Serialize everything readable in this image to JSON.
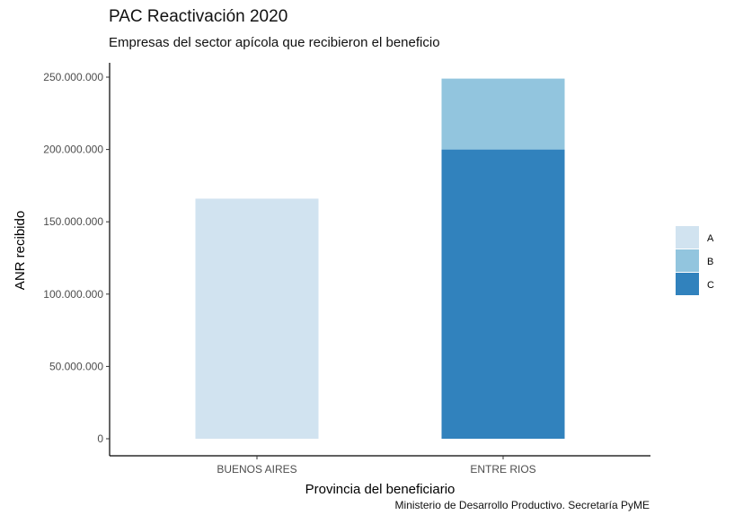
{
  "chart_data": {
    "type": "bar",
    "stacked": true,
    "title": "PAC Reactivación 2020",
    "subtitle": "Empresas del sector apícola que recibieron el beneficio",
    "xlabel": "Provincia del beneficiario",
    "ylabel": "ANR recibido",
    "caption": "Ministerio de Desarrollo Productivo. Secretaría PyME",
    "categories": [
      "BUENOS AIRES",
      "ENTRE RIOS"
    ],
    "series": [
      {
        "name": "A",
        "color": "#d1e3f0",
        "values": [
          166000000,
          0
        ]
      },
      {
        "name": "B",
        "color": "#92c5de",
        "values": [
          0,
          49000000
        ]
      },
      {
        "name": "C",
        "color": "#3182bd",
        "values": [
          0,
          200000000
        ]
      }
    ],
    "ylim": [
      0,
      262000000
    ],
    "yticks": [
      0,
      50000000,
      100000000,
      150000000,
      200000000,
      250000000
    ],
    "ytick_labels": [
      "0",
      "50.000.000",
      "100.000.000",
      "150.000.000",
      "200.000.000",
      "250.000.000"
    ],
    "legend_position": "right",
    "grid": false
  }
}
